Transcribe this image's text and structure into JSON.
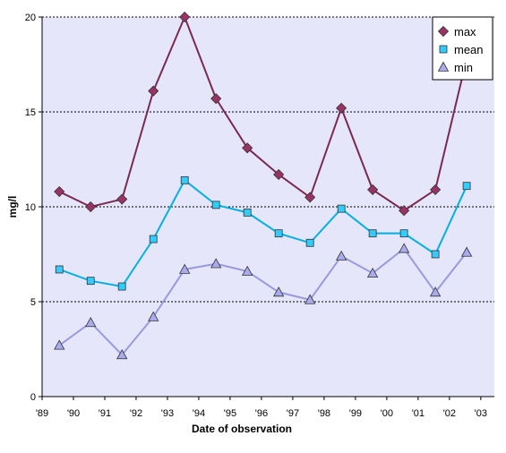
{
  "chart_data": {
    "type": "line",
    "xlabel": "Date of observation",
    "ylabel": "mg/l",
    "ylim": [
      0,
      20
    ],
    "y_ticks": [
      "0",
      "5",
      "10",
      "15",
      "20"
    ],
    "x_tick_labels": [
      "'89",
      "'90",
      "'91",
      "'92",
      "'93",
      "'94",
      "'95",
      "'96",
      "'97",
      "'98",
      "'99",
      "'00",
      "'01",
      "'02",
      "'03"
    ],
    "grid": "horizontal dotted",
    "legend": "top-right",
    "plot_background": "#e6e6fa",
    "series": [
      {
        "name": "max",
        "color": "#7a2a52",
        "marker_color": "#993366",
        "marker": "diamond",
        "values": [
          10.8,
          10.0,
          10.4,
          16.1,
          20.0,
          15.7,
          13.1,
          11.7,
          10.5,
          15.2,
          10.9,
          9.8,
          10.9,
          17.8
        ]
      },
      {
        "name": "mean",
        "color": "#00b0e0",
        "marker_color": "#33ccff",
        "marker": "square",
        "values": [
          6.7,
          6.1,
          5.8,
          8.3,
          11.4,
          10.1,
          9.7,
          8.6,
          8.1,
          9.9,
          8.6,
          8.6,
          7.5,
          11.1
        ]
      },
      {
        "name": "min",
        "color": "#9999dd",
        "marker_color": "#aaaaee",
        "marker": "triangle",
        "values": [
          2.7,
          3.9,
          2.2,
          4.2,
          6.7,
          7.0,
          6.6,
          5.5,
          5.1,
          7.4,
          6.5,
          7.8,
          5.5,
          7.6
        ]
      }
    ]
  }
}
